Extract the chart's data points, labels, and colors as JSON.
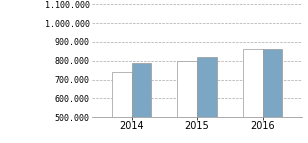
{
  "years": [
    "2014",
    "2015",
    "2016"
  ],
  "bar1_values": [
    740000,
    800000,
    860000
  ],
  "bar2_values": [
    790000,
    820000,
    862000
  ],
  "bar1_color": "#ffffff",
  "bar2_color": "#7ba7c4",
  "bar_edge_color": "#999999",
  "ylim": [
    500000,
    1100000
  ],
  "yticks": [
    500000,
    600000,
    700000,
    800000,
    900000,
    1000000,
    1100000
  ],
  "ytick_labels": [
    "500.000",
    "600.000",
    "700.000",
    "800.000",
    "900.000",
    "1.000.000",
    "1.100.000"
  ],
  "grid_color": "#aaaaaa",
  "grid_linestyle": "--",
  "bar_width": 0.3,
  "background_color": "#ffffff",
  "tick_fontsize": 6,
  "xlabel_fontsize": 7
}
